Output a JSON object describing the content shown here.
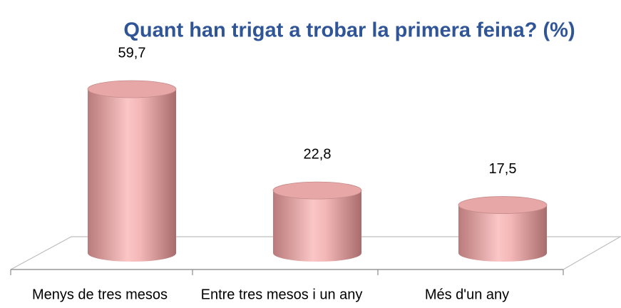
{
  "chart_data": {
    "type": "bar",
    "title": "Quant han trigat a trobar la primera feina? (%)",
    "categories": [
      "Menys de tres mesos",
      "Entre tres mesos i un any",
      "Més d'un any"
    ],
    "values": [
      59.7,
      22.8,
      17.5
    ],
    "value_labels": [
      "59,7",
      "22,8",
      "17,5"
    ],
    "color": "#e8a7a7"
  }
}
